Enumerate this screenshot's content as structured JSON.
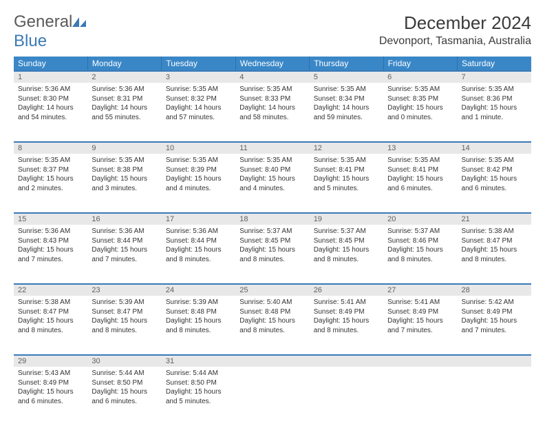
{
  "logo": {
    "general": "General",
    "blue": "Blue"
  },
  "title": "December 2024",
  "location": "Devonport, Tasmania, Australia",
  "colors": {
    "header_bg": "#3a87c7",
    "header_text": "#ffffff",
    "divider": "#3a7ab8",
    "daynum_bg": "#e8e8e8",
    "daynum_text": "#606060",
    "body_text": "#333333",
    "logo_blue": "#3a7ab8",
    "logo_gray": "#5a5a5a"
  },
  "dayHeaders": [
    "Sunday",
    "Monday",
    "Tuesday",
    "Wednesday",
    "Thursday",
    "Friday",
    "Saturday"
  ],
  "weeks": [
    [
      {
        "n": "1",
        "sr": "Sunrise: 5:36 AM",
        "ss": "Sunset: 8:30 PM",
        "dl": "Daylight: 14 hours and 54 minutes."
      },
      {
        "n": "2",
        "sr": "Sunrise: 5:36 AM",
        "ss": "Sunset: 8:31 PM",
        "dl": "Daylight: 14 hours and 55 minutes."
      },
      {
        "n": "3",
        "sr": "Sunrise: 5:35 AM",
        "ss": "Sunset: 8:32 PM",
        "dl": "Daylight: 14 hours and 57 minutes."
      },
      {
        "n": "4",
        "sr": "Sunrise: 5:35 AM",
        "ss": "Sunset: 8:33 PM",
        "dl": "Daylight: 14 hours and 58 minutes."
      },
      {
        "n": "5",
        "sr": "Sunrise: 5:35 AM",
        "ss": "Sunset: 8:34 PM",
        "dl": "Daylight: 14 hours and 59 minutes."
      },
      {
        "n": "6",
        "sr": "Sunrise: 5:35 AM",
        "ss": "Sunset: 8:35 PM",
        "dl": "Daylight: 15 hours and 0 minutes."
      },
      {
        "n": "7",
        "sr": "Sunrise: 5:35 AM",
        "ss": "Sunset: 8:36 PM",
        "dl": "Daylight: 15 hours and 1 minute."
      }
    ],
    [
      {
        "n": "8",
        "sr": "Sunrise: 5:35 AM",
        "ss": "Sunset: 8:37 PM",
        "dl": "Daylight: 15 hours and 2 minutes."
      },
      {
        "n": "9",
        "sr": "Sunrise: 5:35 AM",
        "ss": "Sunset: 8:38 PM",
        "dl": "Daylight: 15 hours and 3 minutes."
      },
      {
        "n": "10",
        "sr": "Sunrise: 5:35 AM",
        "ss": "Sunset: 8:39 PM",
        "dl": "Daylight: 15 hours and 4 minutes."
      },
      {
        "n": "11",
        "sr": "Sunrise: 5:35 AM",
        "ss": "Sunset: 8:40 PM",
        "dl": "Daylight: 15 hours and 4 minutes."
      },
      {
        "n": "12",
        "sr": "Sunrise: 5:35 AM",
        "ss": "Sunset: 8:41 PM",
        "dl": "Daylight: 15 hours and 5 minutes."
      },
      {
        "n": "13",
        "sr": "Sunrise: 5:35 AM",
        "ss": "Sunset: 8:41 PM",
        "dl": "Daylight: 15 hours and 6 minutes."
      },
      {
        "n": "14",
        "sr": "Sunrise: 5:35 AM",
        "ss": "Sunset: 8:42 PM",
        "dl": "Daylight: 15 hours and 6 minutes."
      }
    ],
    [
      {
        "n": "15",
        "sr": "Sunrise: 5:36 AM",
        "ss": "Sunset: 8:43 PM",
        "dl": "Daylight: 15 hours and 7 minutes."
      },
      {
        "n": "16",
        "sr": "Sunrise: 5:36 AM",
        "ss": "Sunset: 8:44 PM",
        "dl": "Daylight: 15 hours and 7 minutes."
      },
      {
        "n": "17",
        "sr": "Sunrise: 5:36 AM",
        "ss": "Sunset: 8:44 PM",
        "dl": "Daylight: 15 hours and 8 minutes."
      },
      {
        "n": "18",
        "sr": "Sunrise: 5:37 AM",
        "ss": "Sunset: 8:45 PM",
        "dl": "Daylight: 15 hours and 8 minutes."
      },
      {
        "n": "19",
        "sr": "Sunrise: 5:37 AM",
        "ss": "Sunset: 8:45 PM",
        "dl": "Daylight: 15 hours and 8 minutes."
      },
      {
        "n": "20",
        "sr": "Sunrise: 5:37 AM",
        "ss": "Sunset: 8:46 PM",
        "dl": "Daylight: 15 hours and 8 minutes."
      },
      {
        "n": "21",
        "sr": "Sunrise: 5:38 AM",
        "ss": "Sunset: 8:47 PM",
        "dl": "Daylight: 15 hours and 8 minutes."
      }
    ],
    [
      {
        "n": "22",
        "sr": "Sunrise: 5:38 AM",
        "ss": "Sunset: 8:47 PM",
        "dl": "Daylight: 15 hours and 8 minutes."
      },
      {
        "n": "23",
        "sr": "Sunrise: 5:39 AM",
        "ss": "Sunset: 8:47 PM",
        "dl": "Daylight: 15 hours and 8 minutes."
      },
      {
        "n": "24",
        "sr": "Sunrise: 5:39 AM",
        "ss": "Sunset: 8:48 PM",
        "dl": "Daylight: 15 hours and 8 minutes."
      },
      {
        "n": "25",
        "sr": "Sunrise: 5:40 AM",
        "ss": "Sunset: 8:48 PM",
        "dl": "Daylight: 15 hours and 8 minutes."
      },
      {
        "n": "26",
        "sr": "Sunrise: 5:41 AM",
        "ss": "Sunset: 8:49 PM",
        "dl": "Daylight: 15 hours and 8 minutes."
      },
      {
        "n": "27",
        "sr": "Sunrise: 5:41 AM",
        "ss": "Sunset: 8:49 PM",
        "dl": "Daylight: 15 hours and 7 minutes."
      },
      {
        "n": "28",
        "sr": "Sunrise: 5:42 AM",
        "ss": "Sunset: 8:49 PM",
        "dl": "Daylight: 15 hours and 7 minutes."
      }
    ],
    [
      {
        "n": "29",
        "sr": "Sunrise: 5:43 AM",
        "ss": "Sunset: 8:49 PM",
        "dl": "Daylight: 15 hours and 6 minutes."
      },
      {
        "n": "30",
        "sr": "Sunrise: 5:44 AM",
        "ss": "Sunset: 8:50 PM",
        "dl": "Daylight: 15 hours and 6 minutes."
      },
      {
        "n": "31",
        "sr": "Sunrise: 5:44 AM",
        "ss": "Sunset: 8:50 PM",
        "dl": "Daylight: 15 hours and 5 minutes."
      },
      null,
      null,
      null,
      null
    ]
  ]
}
